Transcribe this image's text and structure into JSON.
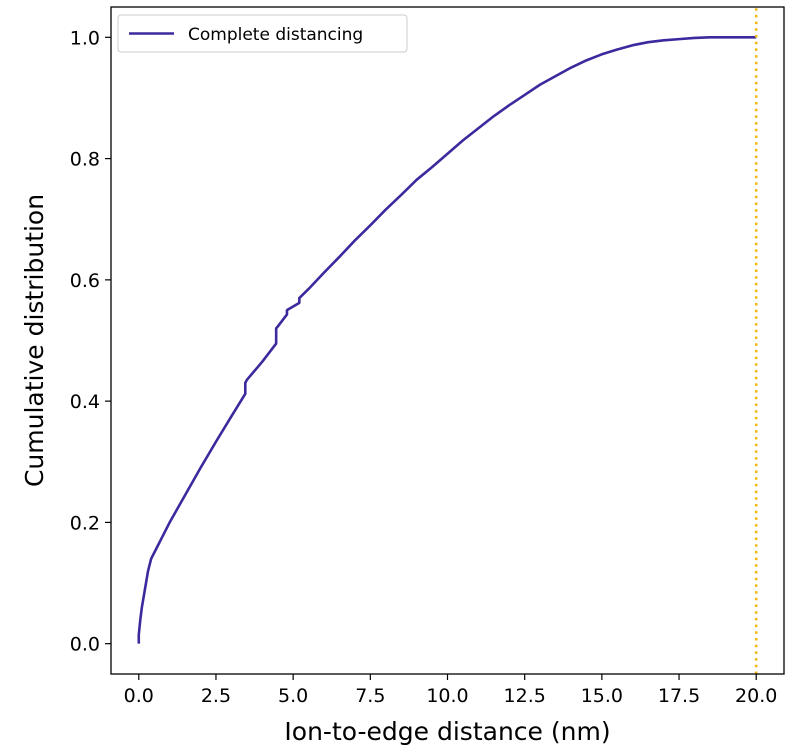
{
  "chart_data": {
    "type": "line",
    "xlabel": "Ion-to-edge distance (nm)",
    "ylabel": "Cumulative distribution",
    "xlim": [
      -0.9,
      20.9
    ],
    "ylim": [
      -0.05,
      1.05
    ],
    "x_ticks": [
      0.0,
      2.5,
      5.0,
      7.5,
      10.0,
      12.5,
      15.0,
      17.5,
      20.0
    ],
    "x_tick_labels": [
      "0.0",
      "2.5",
      "5.0",
      "7.5",
      "10.0",
      "12.5",
      "15.0",
      "17.5",
      "20.0"
    ],
    "y_ticks": [
      0.0,
      0.2,
      0.4,
      0.6,
      0.8,
      1.0
    ],
    "y_tick_labels": [
      "0.0",
      "0.2",
      "0.4",
      "0.6",
      "0.8",
      "1.0"
    ],
    "grid": false,
    "legend_position": "top-left",
    "series": [
      {
        "name": "Complete distancing",
        "color": "#3b2a9e",
        "style": "solid",
        "x": [
          0.0,
          0.0,
          0.02,
          0.05,
          0.1,
          0.2,
          0.3,
          0.4,
          0.5,
          0.75,
          1.0,
          1.5,
          2.0,
          2.5,
          3.0,
          3.45,
          3.45,
          3.5,
          4.0,
          4.45,
          4.45,
          4.5,
          4.8,
          4.8,
          5.2,
          5.2,
          5.5,
          6.0,
          6.5,
          7.0,
          7.5,
          8.0,
          8.5,
          9.0,
          9.5,
          10.0,
          10.5,
          11.0,
          11.5,
          12.0,
          12.5,
          13.0,
          13.5,
          14.0,
          14.5,
          15.0,
          15.5,
          16.0,
          16.5,
          17.0,
          17.5,
          18.0,
          18.5,
          19.0,
          19.5,
          20.0
        ],
        "y": [
          0.0,
          0.015,
          0.025,
          0.04,
          0.06,
          0.09,
          0.12,
          0.14,
          0.15,
          0.175,
          0.2,
          0.245,
          0.29,
          0.333,
          0.375,
          0.412,
          0.43,
          0.435,
          0.465,
          0.495,
          0.52,
          0.523,
          0.543,
          0.55,
          0.562,
          0.57,
          0.585,
          0.612,
          0.638,
          0.665,
          0.69,
          0.716,
          0.74,
          0.765,
          0.786,
          0.808,
          0.83,
          0.85,
          0.87,
          0.888,
          0.905,
          0.922,
          0.936,
          0.95,
          0.962,
          0.972,
          0.98,
          0.987,
          0.992,
          0.995,
          0.997,
          0.999,
          1.0,
          1.0,
          1.0,
          1.0
        ]
      },
      {
        "color": "#f2b70b",
        "style": "dotted",
        "x": [
          20.0,
          20.0
        ],
        "y": [
          -0.05,
          1.05
        ]
      }
    ]
  }
}
